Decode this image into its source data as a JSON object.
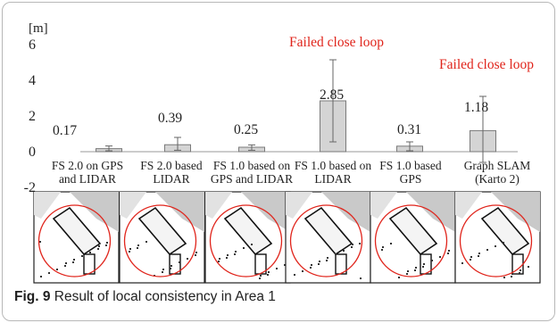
{
  "chart_data": {
    "type": "bar",
    "unit_label": "[m]",
    "ylim": [
      -2,
      6
    ],
    "yticks": [
      "-2",
      "0",
      "2",
      "4",
      "6"
    ],
    "categories": [
      [
        "FS 2.0 on GPS",
        "and LIDAR"
      ],
      [
        "FS 2.0 based",
        "LIDAR"
      ],
      [
        "FS 1.0 based on",
        "GPS and LIDAR"
      ],
      [
        "FS 1.0 based on",
        "LIDAR"
      ],
      [
        "FS 1.0 based",
        "GPS"
      ],
      [
        "Graph SLAM",
        "(Karto 2)"
      ]
    ],
    "values": [
      0.17,
      0.39,
      0.25,
      2.85,
      0.31,
      1.18
    ],
    "value_labels": [
      "0.17",
      "0.39",
      "0.25",
      "2.85",
      "0.31",
      "1.18"
    ],
    "error_low": [
      0.05,
      0.08,
      0.08,
      0.55,
      0.05,
      -0.6
    ],
    "error_high": [
      0.32,
      0.8,
      0.38,
      5.15,
      0.55,
      3.1
    ],
    "annotations": [
      "Failed close loop",
      "Failed close loop"
    ],
    "colors": {
      "bar_fill": "#d4d4d4",
      "bar_stroke": "#7a7a7a",
      "annotation": "#e0241b"
    }
  },
  "caption": {
    "fig_label": "Fig. 9",
    "text": "Result of local consistency in Area 1"
  }
}
